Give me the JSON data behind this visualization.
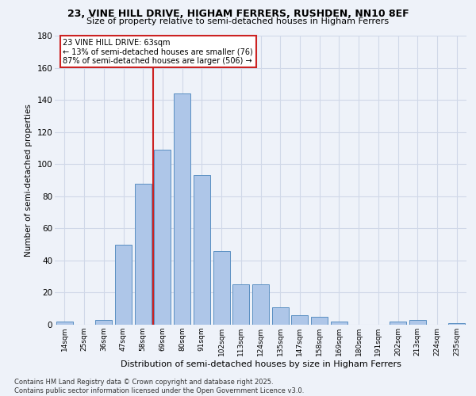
{
  "title1": "23, VINE HILL DRIVE, HIGHAM FERRERS, RUSHDEN, NN10 8EF",
  "title2": "Size of property relative to semi-detached houses in Higham Ferrers",
  "xlabel": "Distribution of semi-detached houses by size in Higham Ferrers",
  "ylabel": "Number of semi-detached properties",
  "footer1": "Contains HM Land Registry data © Crown copyright and database right 2025.",
  "footer2": "Contains public sector information licensed under the Open Government Licence v3.0.",
  "bar_labels": [
    "14sqm",
    "25sqm",
    "36sqm",
    "47sqm",
    "58sqm",
    "69sqm",
    "80sqm",
    "91sqm",
    "102sqm",
    "113sqm",
    "124sqm",
    "135sqm",
    "147sqm",
    "158sqm",
    "169sqm",
    "180sqm",
    "191sqm",
    "202sqm",
    "213sqm",
    "224sqm",
    "235sqm"
  ],
  "bar_values": [
    2,
    0,
    3,
    50,
    88,
    109,
    144,
    93,
    46,
    25,
    25,
    11,
    6,
    5,
    2,
    0,
    0,
    2,
    3,
    0,
    1
  ],
  "bar_color": "#aec6e8",
  "bar_edge_color": "#5a8fc2",
  "grid_color": "#d0d8e8",
  "bg_color": "#eef2f9",
  "vline_x": 4.5,
  "vline_color": "#cc2222",
  "annotation_title": "23 VINE HILL DRIVE: 63sqm",
  "annotation_line1": "← 13% of semi-detached houses are smaller (76)",
  "annotation_line2": "87% of semi-detached houses are larger (506) →",
  "annotation_box_color": "#cc2222",
  "ylim": [
    0,
    180
  ],
  "yticks": [
    0,
    20,
    40,
    60,
    80,
    100,
    120,
    140,
    160,
    180
  ]
}
